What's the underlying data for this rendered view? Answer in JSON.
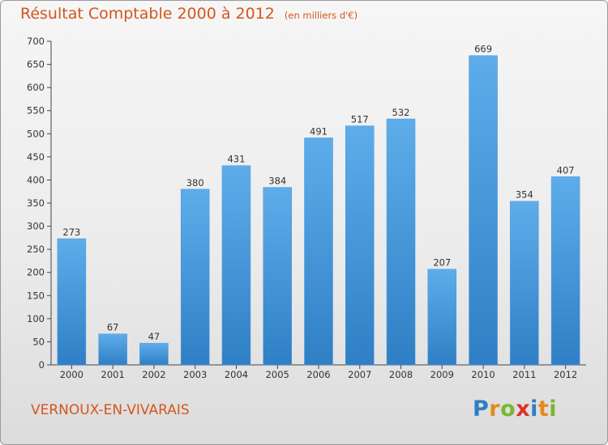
{
  "chart_data": {
    "type": "bar",
    "title": "Résultat Comptable 2000 à 2012",
    "subtitle": "(en milliers d'€)",
    "categories": [
      "2000",
      "2001",
      "2002",
      "2003",
      "2004",
      "2005",
      "2006",
      "2007",
      "2008",
      "2009",
      "2010",
      "2011",
      "2012"
    ],
    "values": [
      273,
      67,
      47,
      380,
      431,
      384,
      491,
      517,
      532,
      207,
      669,
      354,
      407
    ],
    "ylim": [
      0,
      700
    ],
    "yticks": [
      "0",
      "50",
      "100",
      "150",
      "200",
      "250",
      "300",
      "350",
      "400",
      "450",
      "500",
      "550",
      "600",
      "650",
      "700"
    ],
    "grid": false,
    "bar_color_top": "#5eadea",
    "bar_color_bottom": "#2f7fc6"
  },
  "place_name": "VERNOUX-EN-VIVARAIS",
  "logo": {
    "letters": [
      "P",
      "r",
      "o",
      "x",
      "i",
      "t",
      "i"
    ],
    "colors": [
      "#2d7fc6",
      "#e58a1f",
      "#79b72e",
      "#d9352a",
      "#2d7fc6",
      "#e58a1f",
      "#79b72e"
    ]
  }
}
